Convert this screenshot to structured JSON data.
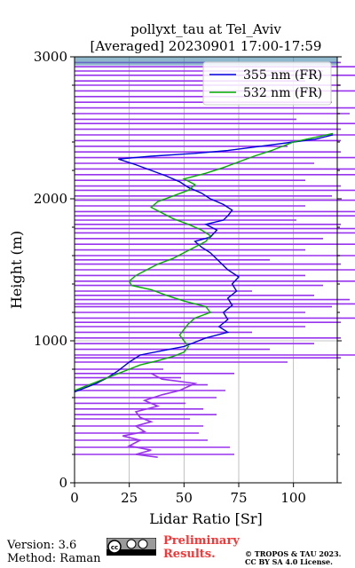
{
  "chart_data": {
    "type": "line",
    "title": "pollyxt_tau at Tel_Aviv",
    "subtitle": "[Averaged] 20230901 17:00-17:59",
    "xlabel": "Lidar Ratio [Sr]",
    "ylabel": "Height (m)",
    "xlim": [
      0,
      120
    ],
    "ylim": [
      0,
      3000
    ],
    "xticks": [
      "0",
      "25",
      "50",
      "75",
      "100"
    ],
    "yticks": [
      "0",
      "1000",
      "2000",
      "3000"
    ],
    "grid": true,
    "legend_position": "top-right",
    "series": [
      {
        "name": "355 nm (FR)",
        "color": "#0000dd",
        "points": [
          [
            0,
            640
          ],
          [
            5,
            670
          ],
          [
            10,
            700
          ],
          [
            15,
            740
          ],
          [
            20,
            790
          ],
          [
            25,
            850
          ],
          [
            30,
            900
          ],
          [
            40,
            930
          ],
          [
            50,
            960
          ],
          [
            55,
            990
          ],
          [
            60,
            1020
          ],
          [
            65,
            1040
          ],
          [
            70,
            1060
          ],
          [
            66,
            1100
          ],
          [
            70,
            1150
          ],
          [
            68,
            1200
          ],
          [
            72,
            1250
          ],
          [
            70,
            1300
          ],
          [
            74,
            1350
          ],
          [
            72,
            1400
          ],
          [
            75,
            1450
          ],
          [
            70,
            1500
          ],
          [
            66,
            1560
          ],
          [
            62,
            1620
          ],
          [
            58,
            1660
          ],
          [
            55,
            1700
          ],
          [
            62,
            1730
          ],
          [
            65,
            1780
          ],
          [
            60,
            1820
          ],
          [
            68,
            1850
          ],
          [
            70,
            1880
          ],
          [
            72,
            1920
          ],
          [
            68,
            1960
          ],
          [
            62,
            2000
          ],
          [
            58,
            2040
          ],
          [
            52,
            2080
          ],
          [
            48,
            2120
          ],
          [
            42,
            2160
          ],
          [
            35,
            2200
          ],
          [
            28,
            2240
          ],
          [
            20,
            2280
          ],
          [
            35,
            2300
          ],
          [
            55,
            2320
          ],
          [
            70,
            2340
          ],
          [
            85,
            2370
          ],
          [
            100,
            2400
          ],
          [
            110,
            2420
          ],
          [
            118,
            2450
          ]
        ]
      },
      {
        "name": "532 nm (FR)",
        "color": "#00aa00",
        "points": [
          [
            0,
            650
          ],
          [
            5,
            680
          ],
          [
            10,
            710
          ],
          [
            15,
            740
          ],
          [
            20,
            770
          ],
          [
            25,
            800
          ],
          [
            30,
            830
          ],
          [
            38,
            860
          ],
          [
            45,
            890
          ],
          [
            50,
            920
          ],
          [
            52,
            960
          ],
          [
            50,
            1000
          ],
          [
            48,
            1040
          ],
          [
            50,
            1080
          ],
          [
            52,
            1120
          ],
          [
            55,
            1160
          ],
          [
            62,
            1200
          ],
          [
            60,
            1240
          ],
          [
            50,
            1280
          ],
          [
            42,
            1320
          ],
          [
            35,
            1360
          ],
          [
            26,
            1390
          ],
          [
            25,
            1420
          ],
          [
            28,
            1460
          ],
          [
            33,
            1500
          ],
          [
            38,
            1540
          ],
          [
            45,
            1580
          ],
          [
            50,
            1620
          ],
          [
            55,
            1660
          ],
          [
            60,
            1700
          ],
          [
            62,
            1740
          ],
          [
            58,
            1780
          ],
          [
            52,
            1820
          ],
          [
            45,
            1860
          ],
          [
            40,
            1900
          ],
          [
            35,
            1940
          ],
          [
            38,
            1980
          ],
          [
            45,
            2020
          ],
          [
            52,
            2060
          ],
          [
            55,
            2100
          ],
          [
            50,
            2140
          ],
          [
            60,
            2180
          ],
          [
            68,
            2220
          ],
          [
            75,
            2260
          ],
          [
            82,
            2300
          ],
          [
            90,
            2340
          ],
          [
            100,
            2400
          ],
          [
            118,
            2460
          ]
        ]
      }
    ],
    "overlay_color": "#9933ee"
  },
  "footer": {
    "version": "Version: 3.6",
    "method": "Method: Raman",
    "preliminary_line1": "Preliminary",
    "preliminary_line2": "Results.",
    "copyright_line1": "© TROPOS & TAU 2023.",
    "copyright_line2": "CC BY SA 4.0 License."
  }
}
